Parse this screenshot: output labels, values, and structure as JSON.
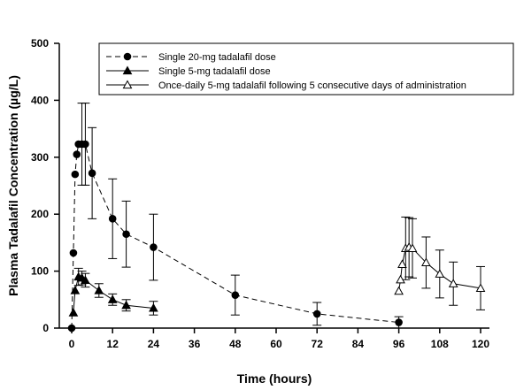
{
  "chart_data": {
    "type": "line",
    "xlabel": "Time (hours)",
    "ylabel": "Plasma Tadalafil Concentration (µg/L)",
    "xlim": [
      0,
      120
    ],
    "ylim": [
      0,
      500
    ],
    "xticks": [
      0,
      12,
      24,
      36,
      48,
      60,
      72,
      84,
      96,
      108,
      120
    ],
    "yticks": [
      0,
      100,
      200,
      300,
      400,
      500
    ],
    "legend_position": "top-right",
    "grid": false,
    "series": [
      {
        "name": "Single 20-mg tadalafil dose",
        "marker": "circle-filled",
        "line_style": "dashed",
        "x": [
          0,
          0.5,
          1,
          1.5,
          2,
          3,
          4,
          6,
          12,
          16,
          24,
          48,
          72,
          96
        ],
        "y": [
          0,
          132,
          270,
          305,
          323,
          323,
          323,
          272,
          192,
          165,
          142,
          58,
          25,
          10
        ],
        "error": [
          0,
          0,
          0,
          0,
          0,
          72,
          72,
          80,
          70,
          58,
          58,
          35,
          20,
          10
        ]
      },
      {
        "name": "Single 5-mg tadalafil dose",
        "marker": "triangle-filled",
        "line_style": "solid",
        "x": [
          0.5,
          1,
          2,
          3,
          4,
          8,
          12,
          16,
          24
        ],
        "y": [
          27,
          66,
          90,
          88,
          84,
          66,
          50,
          40,
          35
        ],
        "error": [
          0,
          0,
          15,
          12,
          12,
          12,
          10,
          10,
          12
        ]
      },
      {
        "name": "Once-daily 5-mg tadalafil following 5 consecutive days of administration",
        "marker": "triangle-open",
        "line_style": "solid",
        "x": [
          96,
          96.5,
          97,
          98,
          99,
          100,
          104,
          108,
          112,
          120
        ],
        "y": [
          65,
          85,
          112,
          140,
          142,
          140,
          115,
          95,
          78,
          70
        ],
        "error": [
          0,
          0,
          0,
          55,
          52,
          52,
          45,
          42,
          38,
          38
        ]
      }
    ]
  }
}
